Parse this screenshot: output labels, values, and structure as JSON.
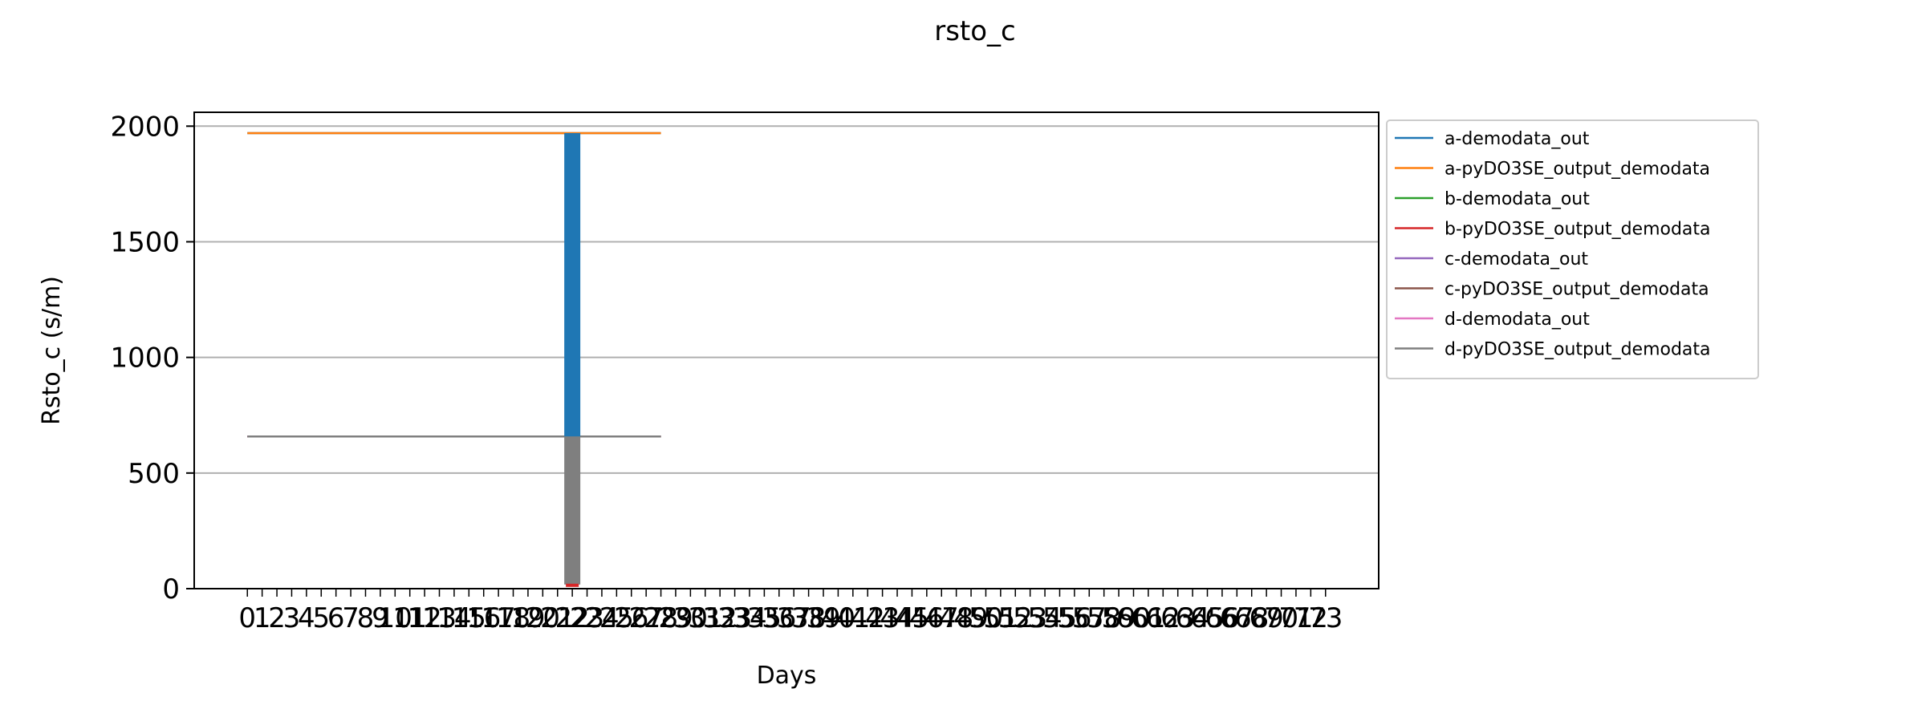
{
  "chart_data": {
    "type": "line",
    "title": "rsto_c",
    "xlabel": "Days",
    "ylabel": "Rsto_c (s/m)",
    "ylim": [
      0,
      2060
    ],
    "xlim": [
      -3.6,
      76.6
    ],
    "y_ticks": [
      0,
      500,
      1000,
      1500,
      2000
    ],
    "x_ticks_labeled_shown": "0 .. 73 (dense, overlapping labels)",
    "grid": "horizontal",
    "legend_position": "outside-right-top",
    "spike": {
      "x": 22,
      "y_top": 1970,
      "y_bottom": 18
    },
    "series": [
      {
        "name": "a-demodata_out",
        "color": "#1f77b4",
        "constant": 1970,
        "x_range": [
          0,
          28
        ]
      },
      {
        "name": "a-pyDO3SE_output_demodata",
        "color": "#ff7f0e",
        "constant": 1970,
        "x_range": [
          0,
          28
        ]
      },
      {
        "name": "b-demodata_out",
        "color": "#2ca02c",
        "constant": 658,
        "x_range": [
          0,
          28
        ]
      },
      {
        "name": "b-pyDO3SE_output_demodata",
        "color": "#d62728",
        "constant": 658,
        "x_range": [
          0,
          28
        ]
      },
      {
        "name": "c-demodata_out",
        "color": "#9467bd",
        "constant": 658,
        "x_range": [
          0,
          28
        ]
      },
      {
        "name": "c-pyDO3SE_output_demodata",
        "color": "#8c564b",
        "constant": 658,
        "x_range": [
          0,
          28
        ]
      },
      {
        "name": "d-demodata_out",
        "color": "#e377c2",
        "constant": 658,
        "x_range": [
          0,
          28
        ]
      },
      {
        "name": "d-pyDO3SE_output_demodata",
        "color": "#7f7f7f",
        "constant": 658,
        "x_range": [
          0,
          28
        ]
      }
    ]
  }
}
